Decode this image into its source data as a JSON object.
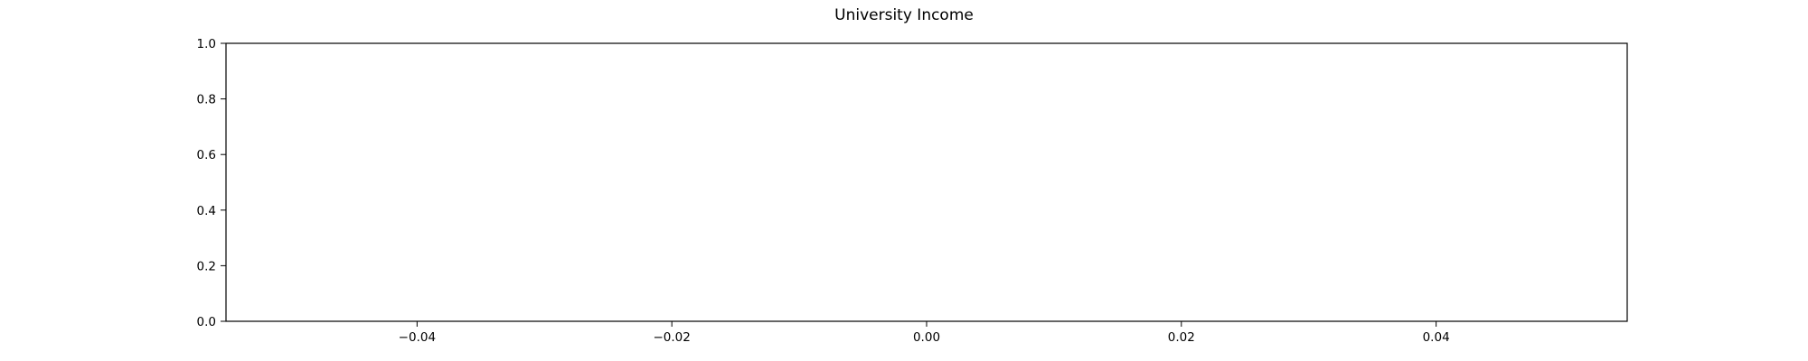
{
  "chart_data": {
    "type": "line",
    "title": "University Income",
    "xlabel": "",
    "ylabel": "",
    "series": [],
    "xlim": [
      -0.055,
      0.055
    ],
    "ylim": [
      0.0,
      1.0
    ],
    "x_ticks": [
      -0.04,
      -0.02,
      0.0,
      0.02,
      0.04
    ],
    "x_tick_labels": [
      "−0.04",
      "−0.02",
      "0.00",
      "0.02",
      "0.04"
    ],
    "y_ticks": [
      0.0,
      0.2,
      0.4,
      0.6,
      0.8,
      1.0
    ],
    "y_tick_labels": [
      "0.0",
      "0.2",
      "0.4",
      "0.6",
      "0.8",
      "1.0"
    ],
    "grid": false,
    "legend": "none"
  }
}
